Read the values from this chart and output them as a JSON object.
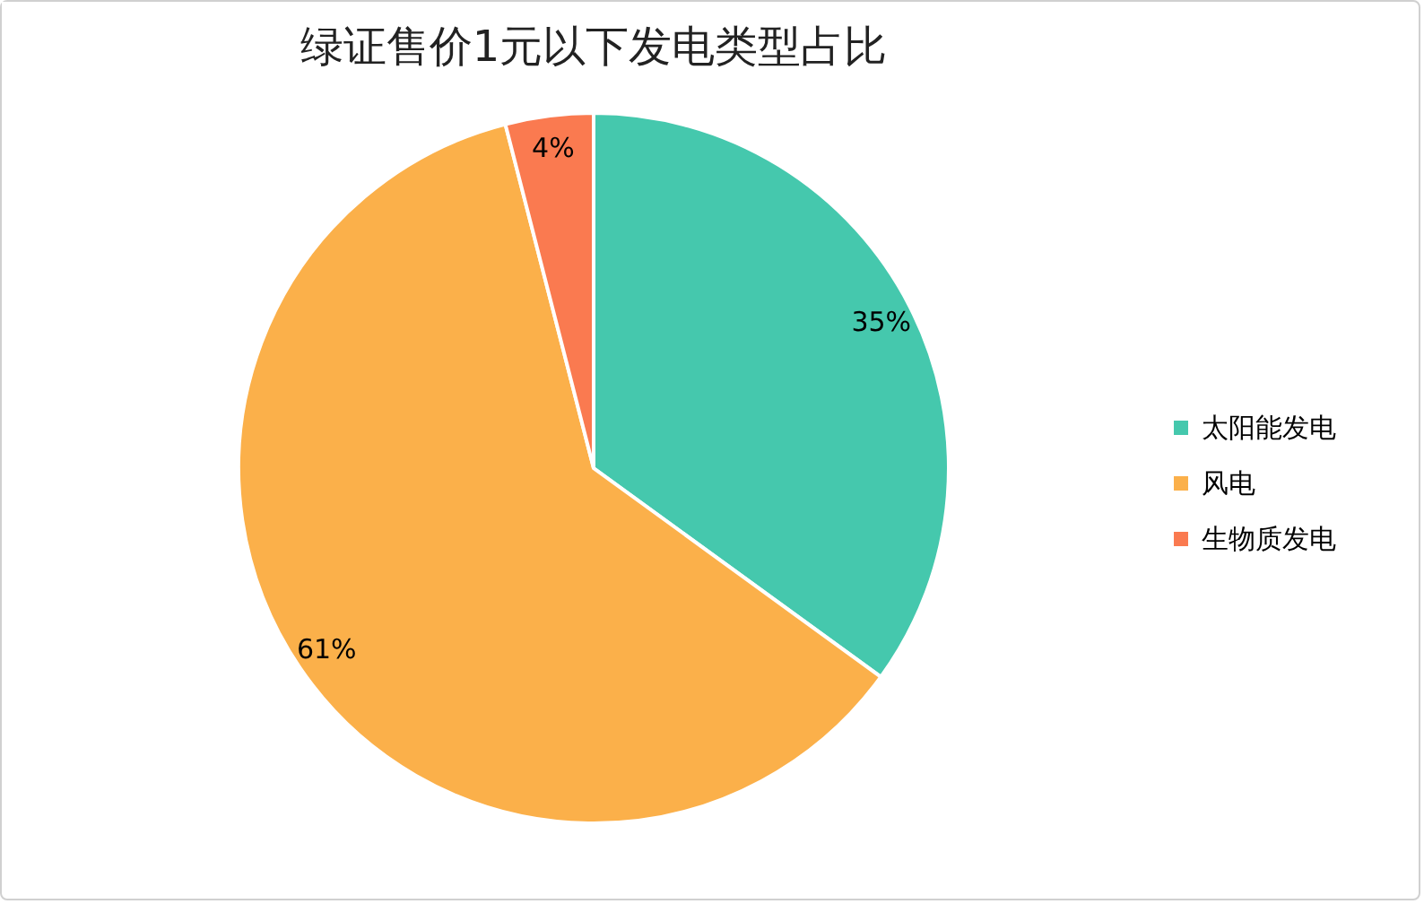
{
  "chart_data": {
    "type": "pie",
    "title": "绿证售价1元以下发电类型占比",
    "categories": [
      "太阳能发电",
      "风电",
      "生物质发电"
    ],
    "values": [
      35,
      61,
      4
    ],
    "colors": [
      "#45c8ad",
      "#fbb04a",
      "#fa7a50"
    ],
    "value_labels": [
      "35%",
      "61%",
      "4%"
    ],
    "legend": "right"
  }
}
